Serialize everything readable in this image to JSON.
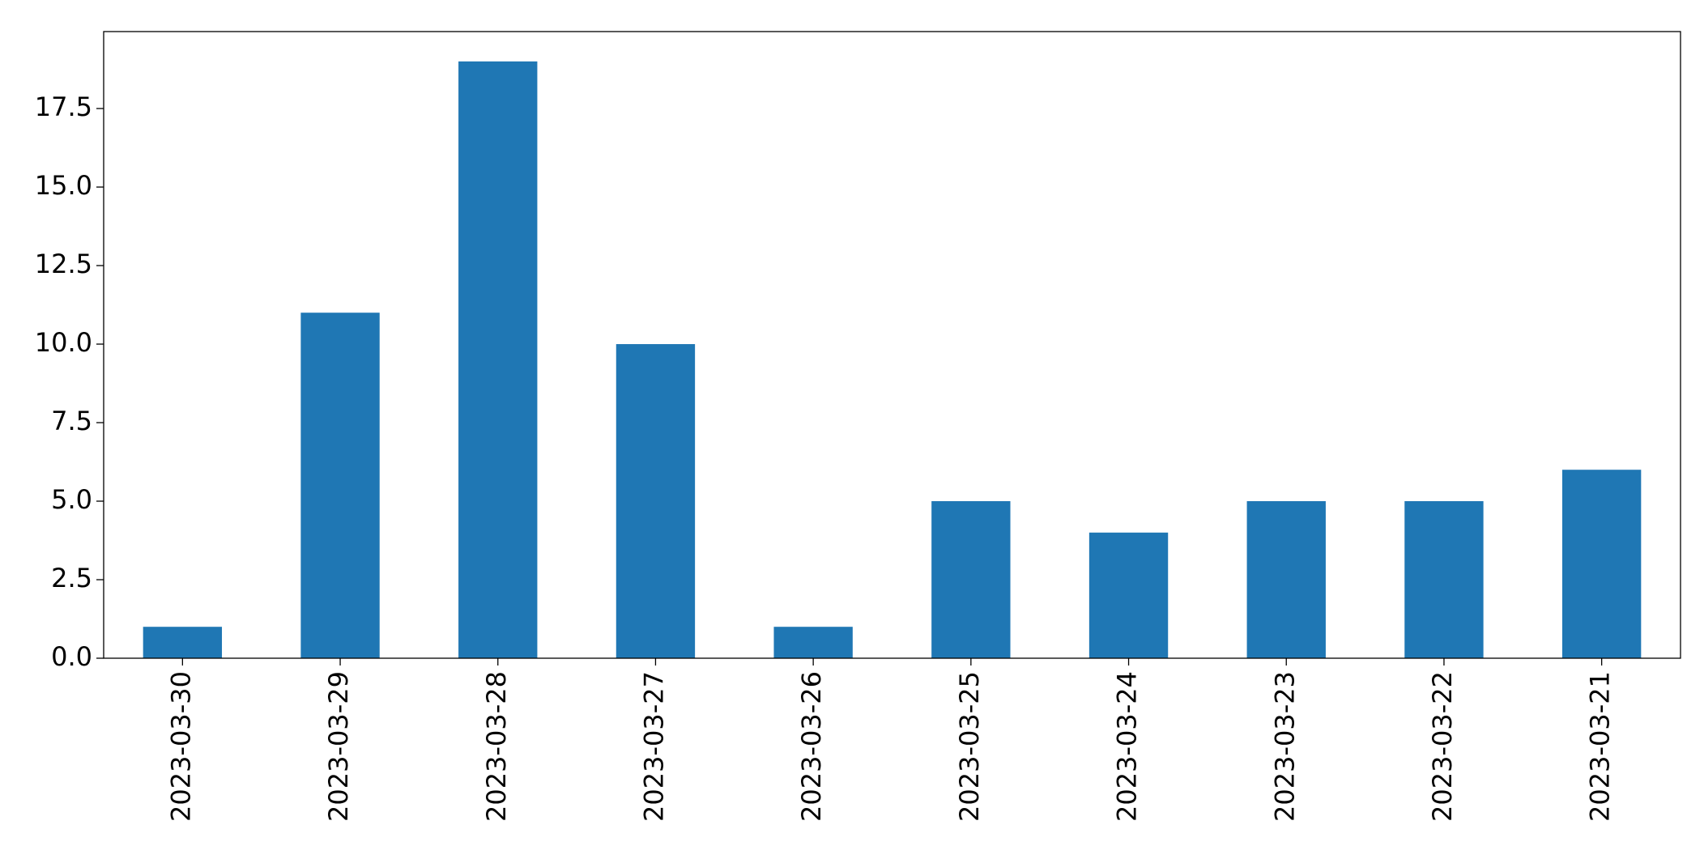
{
  "chart_data": {
    "type": "bar",
    "categories": [
      "2023-03-30",
      "2023-03-29",
      "2023-03-28",
      "2023-03-27",
      "2023-03-26",
      "2023-03-25",
      "2023-03-24",
      "2023-03-23",
      "2023-03-22",
      "2023-03-21"
    ],
    "values": [
      1,
      11,
      19,
      10,
      1,
      5,
      4,
      5,
      5,
      6
    ],
    "color": "#1f77b4",
    "ylim": [
      0,
      19.95
    ],
    "yticks": [
      {
        "value": 0,
        "label": "0.0"
      },
      {
        "value": 2.5,
        "label": "2.5"
      },
      {
        "value": 5,
        "label": "5.0"
      },
      {
        "value": 7.5,
        "label": "7.5"
      },
      {
        "value": 10,
        "label": "10.0"
      },
      {
        "value": 12.5,
        "label": "12.5"
      },
      {
        "value": 15,
        "label": "15.0"
      },
      {
        "value": 17.5,
        "label": "17.5"
      }
    ],
    "grid": false
  }
}
